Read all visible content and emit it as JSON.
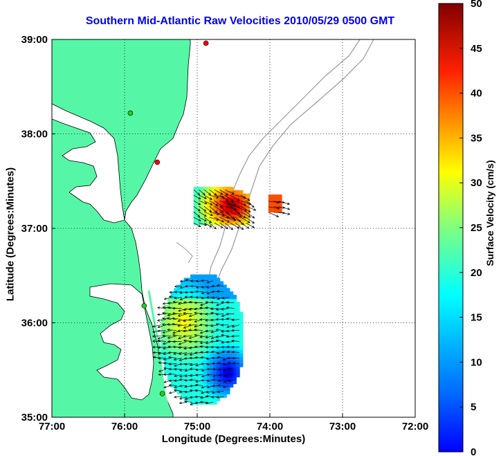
{
  "title": "Southern Mid-Atlantic Raw Velocities 2010/05/29 0500 GMT",
  "xlabel": "Longitude (Degrees:Minutes)",
  "ylabel": "Latitude (Degrees:Minutes)",
  "colorbar": {
    "label": "Surface Velocity (cm/s)",
    "ticks": [
      "0",
      "5",
      "10",
      "15",
      "20",
      "25",
      "30",
      "35",
      "40",
      "45",
      "50"
    ],
    "range": [
      0,
      50
    ],
    "colormap": "jet"
  },
  "map": {
    "lon_ticks": [
      "77:00",
      "76:00",
      "75:00",
      "74:00",
      "73:00",
      "72:00"
    ],
    "lat_ticks": [
      "35:00",
      "36:00",
      "37:00",
      "38:00",
      "39:00"
    ],
    "lon_range": [
      -77,
      -72
    ],
    "lat_range": [
      35,
      39
    ],
    "land_color": "#55f7a6",
    "water_color": "#ffffff",
    "bathymetry_color": "#999999",
    "grid": "dotted",
    "stations": [
      {
        "lon": -74.88,
        "lat": 38.96,
        "color": "red"
      },
      {
        "lon": -75.92,
        "lat": 38.22,
        "color": "green"
      },
      {
        "lon": -75.55,
        "lat": 37.7,
        "color": "red"
      },
      {
        "lon": -75.73,
        "lat": 36.18,
        "color": "green"
      },
      {
        "lon": -75.48,
        "lat": 35.25,
        "color": "green"
      }
    ]
  },
  "chart_data": {
    "type": "heatmap",
    "title": "Southern Mid-Atlantic Raw Velocities 2010/05/29 0500 GMT",
    "xlabel": "Longitude (Degrees:Minutes)",
    "ylabel": "Latitude (Degrees:Minutes)",
    "value_label": "Surface Velocity (cm/s)",
    "value_range": [
      0,
      50
    ],
    "regions": [
      {
        "name": "",
        "lon_range": [
          -75.05,
          -74.3
        ],
        "lat_range": [
          37.0,
          37.4
        ],
        "approx_speed": [
          20,
          48
        ]
      },
      {
        "name": "",
        "lon_range": [
          -74.05,
          -73.8
        ],
        "lat_range": [
          37.2,
          37.3
        ],
        "approx_speed": [
          38,
          42
        ]
      },
      {
        "name": "",
        "lon_range": [
          -75.5,
          -74.35
        ],
        "lat_range": [
          35.1,
          36.45
        ],
        "approx_speed": [
          5,
          35
        ]
      }
    ]
  }
}
